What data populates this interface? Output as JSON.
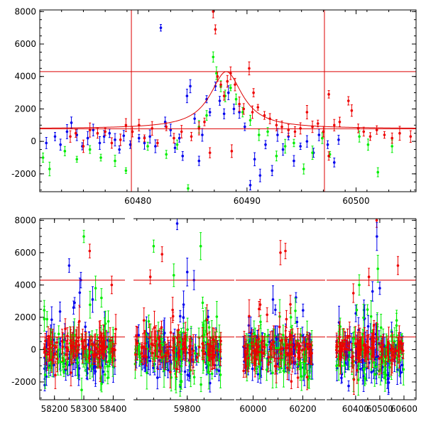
{
  "chart_data": [
    {
      "type": "scatter",
      "title": "",
      "xlabel": "",
      "ylabel": "",
      "xlim": [
        60471,
        60505.5
      ],
      "ylim": [
        -3100,
        8100
      ],
      "x_ticks": [
        60480,
        60490,
        60500
      ],
      "x_tick_labels": [
        "60480",
        "60490",
        "60500"
      ],
      "y_ticks": [
        -2000,
        0,
        2000,
        4000,
        6000,
        8000
      ],
      "y_tick_labels": [
        "-2000",
        "0",
        "2000",
        "4000",
        "6000",
        "8000"
      ],
      "hlines": [
        4300,
        780
      ],
      "vlines": [
        60479.4,
        60497.1
      ],
      "hline_color": "#dd0000",
      "vline_color": "#dd0000",
      "model_curve": {
        "color": "#dd0000",
        "t0": 60488.1,
        "baseline": 780,
        "peak": 4300,
        "fwhm": 3.6
      },
      "series": [
        {
          "color": "#0000ee",
          "points": [
            [
              60471.6,
              -100
            ],
            [
              60472.4,
              300
            ],
            [
              60472.9,
              -200
            ],
            [
              60473.5,
              600
            ],
            [
              60473.9,
              1150
            ],
            [
              60474.4,
              400
            ],
            [
              60474.9,
              -300
            ],
            [
              60475.4,
              200
            ],
            [
              60475.9,
              700
            ],
            [
              60476.5,
              -100
            ],
            [
              60476.9,
              300
            ],
            [
              60477.4,
              500
            ],
            [
              60477.9,
              100
            ],
            [
              60478.3,
              -500
            ],
            [
              60478.7,
              350
            ],
            [
              60479.3,
              -200
            ],
            [
              60480.1,
              200
            ],
            [
              60480.6,
              -100
            ],
            [
              60481.1,
              300
            ],
            [
              60481.6,
              -300
            ],
            [
              60482.1,
              7000
            ],
            [
              60482.5,
              1200
            ],
            [
              60483.0,
              700
            ],
            [
              60483.4,
              -400
            ],
            [
              60483.8,
              200
            ],
            [
              60484.1,
              -900
            ],
            [
              60484.5,
              2800
            ],
            [
              60484.8,
              3400
            ],
            [
              60485.2,
              1400
            ],
            [
              60485.6,
              -1200
            ],
            [
              60485.9,
              400
            ],
            [
              60486.3,
              2600
            ],
            [
              60486.6,
              1800
            ],
            [
              60487.1,
              3400
            ],
            [
              60487.5,
              2500
            ],
            [
              60487.9,
              1700
            ],
            [
              60488.3,
              3000
            ],
            [
              60488.8,
              2000
            ],
            [
              60489.3,
              1800
            ],
            [
              60489.8,
              900
            ],
            [
              60490.3,
              -2700
            ],
            [
              60490.7,
              -1100
            ],
            [
              60491.2,
              -2100
            ],
            [
              60491.7,
              -200
            ],
            [
              60492.3,
              -1800
            ],
            [
              60492.8,
              400
            ],
            [
              60493.3,
              -500
            ],
            [
              60493.8,
              300
            ],
            [
              60494.3,
              -1200
            ],
            [
              60494.9,
              -300
            ],
            [
              60495.5,
              0
            ],
            [
              60496.1,
              -700
            ],
            [
              60496.6,
              400
            ],
            [
              60497.4,
              -200
            ],
            [
              60498.0,
              -1300
            ],
            [
              60498.4,
              100
            ]
          ]
        },
        {
          "color": "#00ee00",
          "points": [
            [
              60471.3,
              -1000
            ],
            [
              60471.9,
              -1700
            ],
            [
              60473.3,
              -600
            ],
            [
              60474.4,
              -1100
            ],
            [
              60475.6,
              -500
            ],
            [
              60476.6,
              -1000
            ],
            [
              60477.9,
              -1200
            ],
            [
              60478.9,
              -1800
            ],
            [
              60480.9,
              -300
            ],
            [
              60482.6,
              -800
            ],
            [
              60483.6,
              -200
            ],
            [
              60484.6,
              -2900
            ],
            [
              60485.6,
              900
            ],
            [
              60486.3,
              1600
            ],
            [
              60486.9,
              5200
            ],
            [
              60487.2,
              4200
            ],
            [
              60487.6,
              3400
            ],
            [
              60488.0,
              2800
            ],
            [
              60488.5,
              3300
            ],
            [
              60489.0,
              2600
            ],
            [
              60489.6,
              1800
            ],
            [
              60490.3,
              1300
            ],
            [
              60491.1,
              400
            ],
            [
              60491.9,
              600
            ],
            [
              60492.7,
              -900
            ],
            [
              60493.5,
              -300
            ],
            [
              60494.3,
              -100
            ],
            [
              60495.2,
              -1700
            ],
            [
              60496.0,
              -700
            ],
            [
              60496.9,
              200
            ],
            [
              60497.6,
              -800
            ],
            [
              60500.3,
              300
            ],
            [
              60501.1,
              -200
            ],
            [
              60502.0,
              -1900
            ],
            [
              60503.3,
              -300
            ]
          ]
        },
        {
          "color": "#ee0000",
          "points": [
            [
              60473.8,
              300
            ],
            [
              60474.3,
              500
            ],
            [
              60475.0,
              -300
            ],
            [
              60475.6,
              700
            ],
            [
              60476.3,
              500
            ],
            [
              60477.0,
              600
            ],
            [
              60477.6,
              -100
            ],
            [
              60478.4,
              100
            ],
            [
              60478.9,
              1000
            ],
            [
              60479.5,
              600
            ],
            [
              60480.1,
              1000
            ],
            [
              60480.6,
              200
            ],
            [
              60481.3,
              800
            ],
            [
              60481.8,
              -100
            ],
            [
              60482.6,
              900
            ],
            [
              60483.3,
              200
            ],
            [
              60484.0,
              600
            ],
            [
              60484.9,
              300
            ],
            [
              60485.6,
              800
            ],
            [
              60486.1,
              1200
            ],
            [
              60486.9,
              8000
            ],
            [
              60487.1,
              6900
            ],
            [
              60487.3,
              4000
            ],
            [
              60487.6,
              3500
            ],
            [
              60487.9,
              2800
            ],
            [
              60488.2,
              3700
            ],
            [
              60488.5,
              4200
            ],
            [
              60488.9,
              3500
            ],
            [
              60489.3,
              2300
            ],
            [
              60489.7,
              2000
            ],
            [
              60490.2,
              4500
            ],
            [
              60490.6,
              3000
            ],
            [
              60491.0,
              2100
            ],
            [
              60491.6,
              1600
            ],
            [
              60492.1,
              1400
            ],
            [
              60492.7,
              1000
            ],
            [
              60493.2,
              900
            ],
            [
              60493.8,
              700
            ],
            [
              60494.4,
              600
            ],
            [
              60494.9,
              800
            ],
            [
              60495.5,
              1800
            ],
            [
              60496.0,
              900
            ],
            [
              60496.5,
              1100
            ],
            [
              60497.0,
              600
            ],
            [
              60497.5,
              2900
            ],
            [
              60498.0,
              1000
            ],
            [
              60498.5,
              1200
            ],
            [
              60499.3,
              2500
            ],
            [
              60499.6,
              1900
            ],
            [
              60500.2,
              800
            ],
            [
              60500.7,
              600
            ],
            [
              60501.3,
              300
            ],
            [
              60501.9,
              700
            ],
            [
              60502.6,
              400
            ],
            [
              60503.3,
              200
            ],
            [
              60504.0,
              500
            ],
            [
              60505.0,
              300
            ],
            [
              60486.6,
              -700
            ],
            [
              60488.6,
              -600
            ],
            [
              60490.5,
              1800
            ],
            [
              60497.5,
              -900
            ]
          ]
        }
      ]
    },
    {
      "type": "scatter",
      "title": "",
      "xlabel": "",
      "ylabel": "",
      "ylim": [
        -3100,
        8100
      ],
      "y_ticks": [
        -2000,
        0,
        2000,
        4000,
        6000,
        8000
      ],
      "y_tick_labels": [
        "-2000",
        "0",
        "2000",
        "4000",
        "6000",
        "8000"
      ],
      "hlines": [
        4300,
        780
      ],
      "hline_color": "#dd0000",
      "segments": [
        {
          "xlim": [
            58150,
            58440
          ],
          "x_ticks": [
            58200,
            58300,
            58400
          ],
          "x_tick_labels": [
            "58200",
            "58300",
            "58400"
          ],
          "data_range": [
            58165,
            58410
          ],
          "outliers": [
            {
              "x": 58250,
              "y": 5200,
              "color": "#0000ee"
            },
            {
              "x": 58265,
              "y": 2600,
              "color": "#0000ee"
            },
            {
              "x": 58290,
              "y": 4300,
              "color": "#0000ee"
            },
            {
              "x": 58300,
              "y": 7000,
              "color": "#00ee00"
            },
            {
              "x": 58320,
              "y": 6100,
              "color": "#ee0000"
            },
            {
              "x": 58330,
              "y": 3100,
              "color": "#0000ee"
            },
            {
              "x": 58340,
              "y": 3800,
              "color": "#00ee00"
            },
            {
              "x": 58360,
              "y": 3200,
              "color": "#00ee00"
            },
            {
              "x": 58395,
              "y": 4000,
              "color": "#ee0000"
            }
          ]
        },
        {
          "xlim": [
            59640,
            59940
          ],
          "x_ticks": [
            59800
          ],
          "x_tick_labels": [
            "59800"
          ],
          "data_range": [
            59645,
            59900
          ],
          "outliers": [
            {
              "x": 59700,
              "y": 6400,
              "color": "#00ee00"
            },
            {
              "x": 59725,
              "y": 5900,
              "color": "#ee0000"
            },
            {
              "x": 59690,
              "y": 4500,
              "color": "#ee0000"
            },
            {
              "x": 59760,
              "y": 4600,
              "color": "#00ee00"
            },
            {
              "x": 59770,
              "y": 7800,
              "color": "#0000ee"
            },
            {
              "x": 59800,
              "y": 4800,
              "color": "#0000ee"
            },
            {
              "x": 59820,
              "y": 4300,
              "color": "#0000ee"
            },
            {
              "x": 59840,
              "y": 6400,
              "color": "#00ee00"
            }
          ]
        },
        {
          "xlim": [
            59930,
            60290
          ],
          "x_ticks": [
            60000,
            60200
          ],
          "x_tick_labels": [
            "60000",
            "60200"
          ],
          "data_range": [
            59960,
            60240
          ],
          "outliers": [
            {
              "x": 60080,
              "y": 3100,
              "color": "#0000ee"
            },
            {
              "x": 60110,
              "y": 6000,
              "color": "#ee0000"
            },
            {
              "x": 60130,
              "y": 6100,
              "color": "#ee0000"
            },
            {
              "x": 60150,
              "y": 2800,
              "color": "#ee0000"
            },
            {
              "x": 60170,
              "y": 2400,
              "color": "#00ee00"
            }
          ]
        },
        {
          "xlim": [
            60280,
            60650
          ],
          "x_ticks": [
            60400,
            60500,
            60600
          ],
          "x_tick_labels": [
            "60400",
            "60500",
            "60600"
          ],
          "data_range": [
            60320,
            60600
          ],
          "outliers": [
            {
              "x": 60415,
              "y": 4000,
              "color": "#00ee00"
            },
            {
              "x": 60455,
              "y": 4500,
              "color": "#ee0000"
            },
            {
              "x": 60470,
              "y": 3600,
              "color": "#0000ee"
            },
            {
              "x": 60487,
              "y": 8000,
              "color": "#ee0000"
            },
            {
              "x": 60488,
              "y": 7000,
              "color": "#0000ee"
            },
            {
              "x": 60492,
              "y": 5000,
              "color": "#00ee00"
            },
            {
              "x": 60500,
              "y": 3800,
              "color": "#0000ee"
            },
            {
              "x": 60575,
              "y": 5200,
              "color": "#ee0000"
            }
          ]
        }
      ],
      "series_colors": [
        "#0000ee",
        "#00ee00",
        "#ee0000"
      ]
    }
  ]
}
